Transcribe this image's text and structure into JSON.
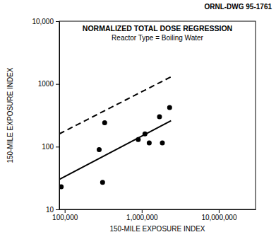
{
  "chart_data": {
    "type": "scatter",
    "title": "NORMALIZED TOTAL DOSE REGRESSION",
    "subtitle": "Reactor  Type = Boiling Water",
    "annotations": [
      "ORNL-DWG 95-1761"
    ],
    "x_label": "150-MILE EXPOSURE INDEX",
    "y_label": "150-MILE EXPOSURE INDEX",
    "log": true,
    "xlim": [
      85000,
      30000000
    ],
    "ylim": [
      10,
      10000
    ],
    "xticks": [
      {
        "value": 100000,
        "label": "100,000"
      },
      {
        "value": 1000000,
        "label": "1,000,000"
      },
      {
        "value": 10000000,
        "label": "10,000,000"
      }
    ],
    "yticks": [
      10,
      100,
      1000,
      {
        "value": 10000,
        "label": "10,000"
      }
    ],
    "series": [
      {
        "type": "scatter",
        "marker": "circle",
        "color": "#000000",
        "x": [
          90000,
          280000,
          310000,
          330000,
          900000,
          1100000,
          1250000,
          1700000,
          1850000,
          2300000
        ],
        "values": [
          23,
          90,
          27,
          240,
          130,
          160,
          115,
          300,
          115,
          420
        ]
      },
      {
        "type": "line",
        "line_style": "solid",
        "color": "#000000",
        "x": [
          85000,
          2400000
        ],
        "values": [
          30,
          260
        ]
      },
      {
        "type": "line",
        "line_style": "dashed",
        "color": "#000000",
        "x": [
          85000,
          2400000
        ],
        "values": [
          160,
          1300
        ]
      }
    ]
  }
}
